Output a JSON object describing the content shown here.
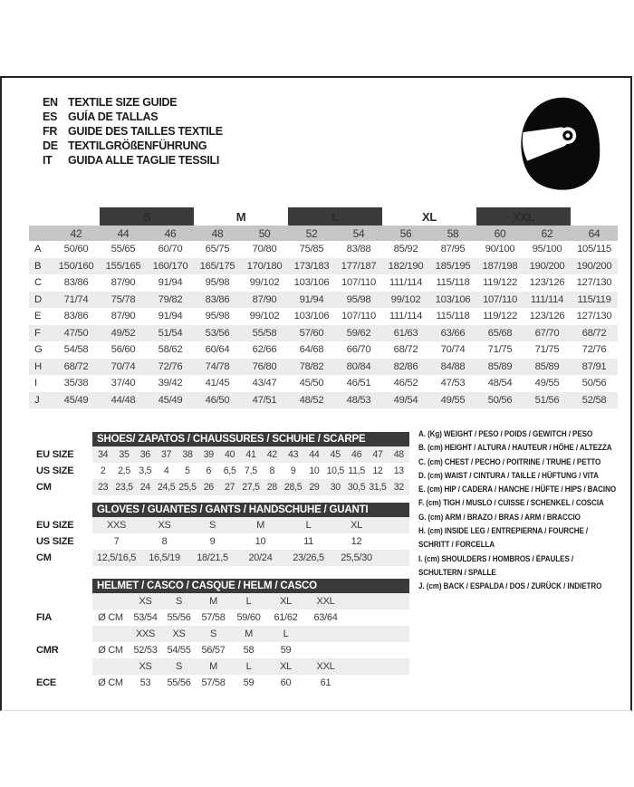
{
  "languages": [
    {
      "code": "EN",
      "label": "TEXTILE SIZE GUIDE"
    },
    {
      "code": "ES",
      "label": "GUÍA DE TALLAS"
    },
    {
      "code": "FR",
      "label": "GUIDE DES TAILLES TEXTILE"
    },
    {
      "code": "DE",
      "label": "TEXTILGRÖßENFÜHRUNG"
    },
    {
      "code": "IT",
      "label": "GUIDA ALLE TAGLIE TESSILI"
    }
  ],
  "textile": {
    "groups": [
      {
        "label": "",
        "span": 1,
        "dark": false
      },
      {
        "label": "S",
        "span": 2,
        "dark": true
      },
      {
        "label": "M",
        "span": 2,
        "dark": false
      },
      {
        "label": "L",
        "span": 2,
        "dark": true
      },
      {
        "label": "XL",
        "span": 2,
        "dark": false
      },
      {
        "label": "XXL",
        "span": 2,
        "dark": true
      },
      {
        "label": "",
        "span": 1,
        "dark": false
      }
    ],
    "numeric": [
      "42",
      "44",
      "46",
      "48",
      "50",
      "52",
      "54",
      "56",
      "58",
      "60",
      "62",
      "64"
    ],
    "rows": [
      {
        "key": "A",
        "values": [
          "50/60",
          "55/65",
          "60/70",
          "65/75",
          "70/80",
          "75/85",
          "83/88",
          "85/92",
          "87/95",
          "90/100",
          "95/100",
          "105/115"
        ]
      },
      {
        "key": "B",
        "values": [
          "150/160",
          "155/165",
          "160/170",
          "165/175",
          "170/180",
          "173/183",
          "177/187",
          "182/190",
          "185/195",
          "187/198",
          "190/200",
          "190/200"
        ]
      },
      {
        "key": "C",
        "values": [
          "83/86",
          "87/90",
          "91/94",
          "95/98",
          "99/102",
          "103/106",
          "107/110",
          "111/114",
          "115/118",
          "119/122",
          "123/126",
          "127/130"
        ]
      },
      {
        "key": "D",
        "values": [
          "71/74",
          "75/78",
          "79/82",
          "83/86",
          "87/90",
          "91/94",
          "95/98",
          "99/102",
          "103/106",
          "107/110",
          "111/114",
          "115/119"
        ]
      },
      {
        "key": "E",
        "values": [
          "83/86",
          "87/90",
          "91/94",
          "95/98",
          "99/102",
          "103/106",
          "107/110",
          "111/114",
          "115/118",
          "119/122",
          "123/126",
          "127/130"
        ]
      },
      {
        "key": "F",
        "values": [
          "47/50",
          "49/52",
          "51/54",
          "53/56",
          "55/58",
          "57/60",
          "59/62",
          "61/63",
          "63/66",
          "65/68",
          "67/70",
          "68/72"
        ]
      },
      {
        "key": "G",
        "values": [
          "54/58",
          "56/60",
          "58/62",
          "60/64",
          "62/66",
          "64/68",
          "66/70",
          "68/72",
          "70/74",
          "71/75",
          "71/75",
          "72/76"
        ]
      },
      {
        "key": "H",
        "values": [
          "68/72",
          "70/74",
          "72/76",
          "74/78",
          "76/80",
          "78/82",
          "80/84",
          "82/86",
          "84/88",
          "85/89",
          "85/89",
          "87/91"
        ]
      },
      {
        "key": "I",
        "values": [
          "35/38",
          "37/40",
          "39/42",
          "41/45",
          "43/47",
          "45/50",
          "46/51",
          "46/52",
          "47/53",
          "48/54",
          "49/55",
          "50/56"
        ]
      },
      {
        "key": "J",
        "values": [
          "45/49",
          "44/48",
          "45/49",
          "46/50",
          "47/51",
          "48/52",
          "48/53",
          "49/54",
          "49/55",
          "50/56",
          "51/56",
          "52/58"
        ]
      }
    ]
  },
  "shoes": {
    "title": "SHOES/ ZAPATOS / CHAUSSURES / SCHUHE / SCARPE",
    "row_labels": [
      "EU SIZE",
      "US SIZE",
      "CM"
    ],
    "rows": [
      [
        "34",
        "35",
        "36",
        "37",
        "38",
        "39",
        "40",
        "41",
        "42",
        "43",
        "44",
        "45",
        "46",
        "47",
        "48"
      ],
      [
        "2",
        "2,5",
        "3,5",
        "4",
        "5",
        "6",
        "6,5",
        "7,5",
        "8",
        "9",
        "10",
        "10,5",
        "11,5",
        "12",
        "13"
      ],
      [
        "23",
        "23,5",
        "24",
        "24,5",
        "25,5",
        "26",
        "27",
        "27,5",
        "28",
        "28,5",
        "29",
        "30",
        "30,5",
        "31,5",
        "32"
      ]
    ]
  },
  "gloves": {
    "title": "GLOVES / GUANTES / GANTS / HANDSCHUHE / GUANTI",
    "row_labels": [
      "EU SIZE",
      "US SIZE",
      "CM"
    ],
    "rows": [
      [
        "XXS",
        "XS",
        "S",
        "M",
        "L",
        "XL"
      ],
      [
        "7",
        "8",
        "9",
        "10",
        "11",
        "12"
      ],
      [
        "12,5/16,5",
        "16,5/19",
        "18/21,5",
        "20/24",
        "23/26,5",
        "25,5/30"
      ]
    ]
  },
  "helmet": {
    "title": "HELMET / CASCO / CASQUE / HELM / CASCO",
    "unit": "Ø CM",
    "groups": [
      {
        "label": "FIA",
        "sizes": [
          "XS",
          "S",
          "M",
          "L",
          "XL",
          "XXL"
        ],
        "values": [
          "53/54",
          "55/56",
          "57/58",
          "59/60",
          "61/62",
          "63/64"
        ]
      },
      {
        "label": "CMR",
        "sizes": [
          "XXS",
          "XS",
          "S",
          "M",
          "L"
        ],
        "values": [
          "52/53",
          "54/55",
          "56/57",
          "58",
          "59"
        ]
      },
      {
        "label": "ECE",
        "sizes": [
          "XS",
          "S",
          "M",
          "L",
          "XL",
          "XXL"
        ],
        "values": [
          "53",
          "55/56",
          "57/58",
          "59",
          "60",
          "61"
        ]
      }
    ]
  },
  "legend": {
    "items": [
      [
        "A. (Kg) WEIGHT / PESO / POIDS / GEWITCH / PESO"
      ],
      [
        "B. (cm) HEIGHT / ALTURA / HAUTEUR / HÖHE / ALTEZZA"
      ],
      [
        "C. (cm) CHEST / PECHO / POITRINE / TRUHE / PETTO"
      ],
      [
        "D. (cm) WAIST / CINTURA / TAILLE / HÜFTUNG / VITA"
      ],
      [
        "E. (cm) HIP / CADERA / HANCHE / HÜFTE / HIPS / BACINO"
      ],
      [
        "F. (cm) TIGH / MUSLO / CUISSE / SCHENKEL / COSCIA"
      ],
      [
        "G. (cm) ARM / BRAZO / BRAS / ARM / BRACCIO"
      ],
      [
        "H. (cm) INSIDE LEG / ENTREPIERNA / FOURCHE /",
        "SCHRITT / FORCELLA"
      ],
      [
        "I. (cm) SHOULDERS / HOMBROS / ÉPAULES /",
        "SCHULTERN / SPALLE"
      ],
      [
        "J. (cm) BACK / ESPALDA / DOS / ZURÜCK / INDIETRO"
      ]
    ]
  },
  "colors": {
    "dark_bar": "#3a3a3a",
    "number_band": "#c6c6c6",
    "row_stripe": "#ececec",
    "helmet_icon": "#0a0a0a"
  }
}
